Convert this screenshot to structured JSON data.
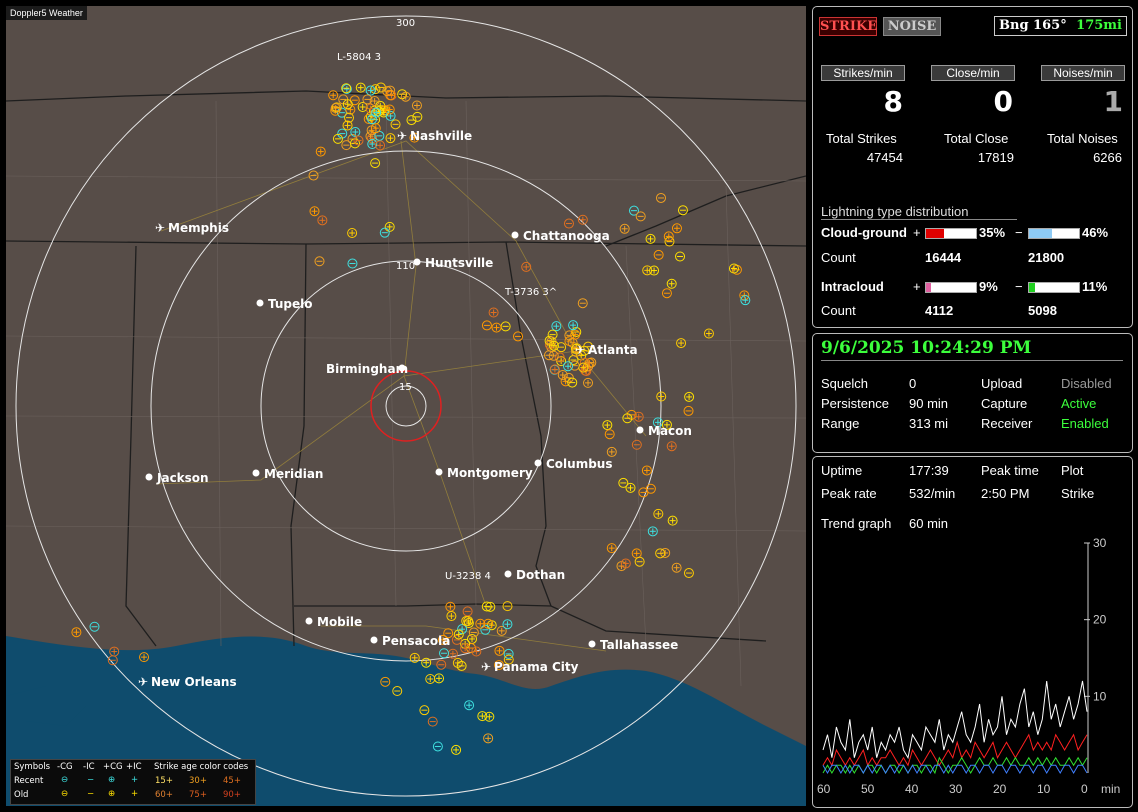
{
  "map": {
    "title": "Doppler5 Weather",
    "range_labels": [
      "300",
      "110",
      "15"
    ],
    "cities": [
      {
        "name": "Nashville",
        "airport": true
      },
      {
        "name": "Memphis",
        "airport": true
      },
      {
        "name": "Chattanooga",
        "airport": false
      },
      {
        "name": "Huntsville",
        "airport": false
      },
      {
        "name": "Tupelo",
        "airport": false
      },
      {
        "name": "Atlanta",
        "airport": true
      },
      {
        "name": "Birmingham",
        "airport": false
      },
      {
        "name": "Macon",
        "airport": false
      },
      {
        "name": "Jackson",
        "airport": false
      },
      {
        "name": "Meridian",
        "airport": false
      },
      {
        "name": "Montgomery",
        "airport": false
      },
      {
        "name": "Columbus",
        "airport": false
      },
      {
        "name": "Dothan",
        "airport": false
      },
      {
        "name": "Mobile",
        "airport": false
      },
      {
        "name": "Pensacola",
        "airport": false
      },
      {
        "name": "Tallahassee",
        "airport": false
      },
      {
        "name": "Panama City",
        "airport": true
      },
      {
        "name": "New Orleans",
        "airport": true
      }
    ],
    "storm_labels": [
      "L-5804 3",
      "T-3736 3^",
      "U-3238 4"
    ],
    "legend": {
      "header": [
        "Symbols",
        "-CG",
        "-IC",
        "+CG",
        "+IC",
        "Strike age color codes"
      ],
      "recent": [
        "Recent",
        "⊖",
        "−",
        "⊕",
        "+",
        "15+",
        "30+",
        "45+"
      ],
      "old": [
        "Old",
        "⊖",
        "−",
        "⊕",
        "+",
        "60+",
        "75+",
        "90+"
      ]
    }
  },
  "controls": {
    "strike_label": "STRIKE",
    "noise_label": "NOISE",
    "bearing": "Bng 165°",
    "distance": "175mi"
  },
  "rates": {
    "strikes_label": "Strikes/min",
    "close_label": "Close/min",
    "noises_label": "Noises/min",
    "strikes_value": "8",
    "close_value": "0",
    "noises_value": "1"
  },
  "totals": {
    "strikes_label": "Total Strikes",
    "close_label": "Total Close",
    "noises_label": "Total Noises",
    "strikes_value": "47454",
    "close_value": "17819",
    "noises_value": "6266"
  },
  "distribution": {
    "title": "Lightning type distribution",
    "cg_label": "Cloud-ground",
    "ic_label": "Intracloud",
    "count_label": "Count",
    "plus": "+",
    "minus": "−",
    "cg_pos_pct": "35%",
    "cg_neg_pct": "46%",
    "cg_pos_count": "16444",
    "cg_neg_count": "21800",
    "ic_pos_pct": "9%",
    "ic_neg_pct": "11%",
    "ic_pos_count": "4112",
    "ic_neg_count": "5098",
    "cg_pos_fill": 0.35,
    "cg_neg_fill": 0.46,
    "ic_pos_fill": 0.09,
    "ic_neg_fill": 0.11,
    "cg_pos_color": "#e00000",
    "cg_neg_color": "#8ecbf5",
    "ic_pos_color": "#e060a0",
    "ic_neg_color": "#20d020"
  },
  "status": {
    "datetime": "9/6/2025 10:24:29 PM",
    "squelch_label": "Squelch",
    "squelch_value": "0",
    "persistence_label": "Persistence",
    "persistence_value": "90 min",
    "range_label": "Range",
    "range_value": "313 mi",
    "upload_label": "Upload",
    "upload_value": "Disabled",
    "capture_label": "Capture",
    "capture_value": "Active",
    "receiver_label": "Receiver",
    "receiver_value": "Enabled"
  },
  "stats": {
    "uptime_label": "Uptime",
    "uptime_value": "177:39",
    "peak_time_label": "Peak time",
    "peak_time_value": "2:50 PM",
    "plot_label": "Plot",
    "plot_value": "Strike",
    "peak_rate_label": "Peak rate",
    "peak_rate_value": "532/min",
    "trend_label": "Trend graph",
    "trend_value": "60 min"
  },
  "chart_data": {
    "type": "line",
    "xlabel": "min",
    "x_ticks": [
      "60",
      "50",
      "40",
      "30",
      "20",
      "10",
      "0"
    ],
    "y_ticks": [
      "30",
      "20",
      "10"
    ],
    "ylim": [
      0,
      30
    ],
    "series": [
      {
        "color": "#ffffff",
        "values": [
          3,
          5,
          2,
          6,
          4,
          3,
          7,
          2,
          4,
          5,
          3,
          6,
          2,
          4,
          3,
          5,
          4,
          6,
          3,
          2,
          5,
          4,
          3,
          6,
          5,
          4,
          7,
          3,
          5,
          4,
          6,
          8,
          5,
          4,
          6,
          9,
          4,
          7,
          5,
          6,
          10,
          5,
          7,
          6,
          9,
          11,
          6,
          8,
          5,
          7,
          12,
          7,
          9,
          6,
          8,
          10,
          7,
          9,
          12,
          8
        ]
      },
      {
        "color": "#ff2020",
        "values": [
          1,
          2,
          1,
          3,
          2,
          1,
          2,
          1,
          2,
          3,
          1,
          2,
          1,
          2,
          2,
          3,
          2,
          1,
          2,
          1,
          3,
          2,
          1,
          2,
          3,
          2,
          1,
          2,
          3,
          2,
          4,
          2,
          3,
          2,
          4,
          3,
          2,
          3,
          4,
          2,
          3,
          4,
          3,
          2,
          3,
          4,
          5,
          3,
          4,
          3,
          4,
          3,
          5,
          4,
          3,
          4,
          5,
          3,
          4,
          5
        ]
      },
      {
        "color": "#30e030",
        "values": [
          0,
          1,
          0,
          1,
          1,
          0,
          1,
          0,
          1,
          0,
          1,
          1,
          0,
          1,
          0,
          1,
          1,
          0,
          1,
          0,
          1,
          1,
          0,
          1,
          1,
          0,
          2,
          1,
          0,
          1,
          1,
          2,
          1,
          0,
          1,
          2,
          1,
          1,
          2,
          1,
          1,
          2,
          1,
          2,
          1,
          1,
          2,
          1,
          2,
          1,
          2,
          1,
          2,
          1,
          1,
          2,
          1,
          2,
          1,
          2
        ]
      },
      {
        "color": "#4080ff",
        "values": [
          1,
          0,
          1,
          1,
          0,
          1,
          0,
          1,
          1,
          0,
          1,
          0,
          1,
          1,
          0,
          1,
          0,
          1,
          1,
          0,
          1,
          0,
          1,
          1,
          0,
          1,
          1,
          0,
          1,
          0,
          1,
          1,
          0,
          1,
          1,
          0,
          1,
          1,
          0,
          1,
          1,
          0,
          1,
          1,
          0,
          1,
          1,
          0,
          1,
          1,
          0,
          1,
          1,
          0,
          1,
          1,
          0,
          1,
          1,
          0
        ]
      }
    ]
  }
}
